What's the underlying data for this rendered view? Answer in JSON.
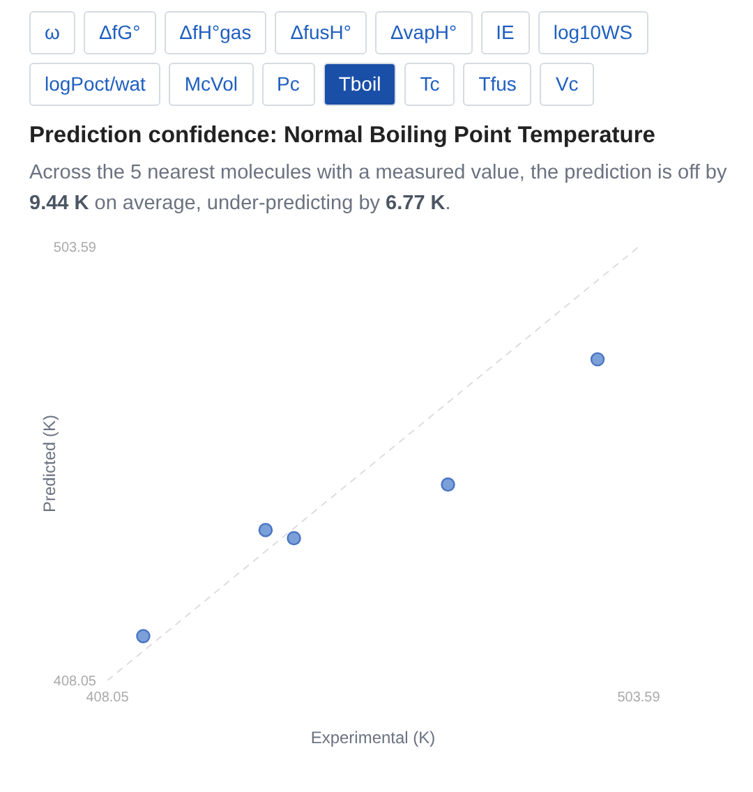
{
  "chart_data": {
    "type": "scatter",
    "title": "Prediction confidence: Normal Boiling Point Temperature",
    "subtitle": "Across the 5 nearest molecules with a measured value, the prediction is off by 9.44 K on average, under-predicting by 6.77 K.",
    "annotations": [
      "ω",
      "ΔfG°",
      "ΔfH°gas",
      "ΔfusH°",
      "ΔvapH°",
      "IE",
      "log10WS",
      "logPoct/wat",
      "McVol",
      "Pc",
      "Tboil",
      "Tc",
      "Tfus",
      "Vc"
    ],
    "xlabel": "Experimental (K)",
    "ylabel": "Predicted (K)",
    "xlim": [
      408.05,
      503.59
    ],
    "ylim": [
      408.05,
      503.59
    ],
    "xticks": [
      408.05,
      503.59
    ],
    "yticks": [
      408.05,
      503.59
    ],
    "marker": "circle",
    "series": [
      {
        "type": "scatter",
        "color": "#7b9fd8",
        "x": [
          414.5,
          436.5,
          441.6,
          469.3,
          496.2
        ],
        "values": [
          417.8,
          441.2,
          439.4,
          451.2,
          478.8
        ]
      },
      {
        "type": "line",
        "color": "#dddddd",
        "line_style": "dashed",
        "marker": "none",
        "x": [
          408.05,
          503.59
        ],
        "values": [
          408.05,
          503.59
        ]
      }
    ]
  }
}
